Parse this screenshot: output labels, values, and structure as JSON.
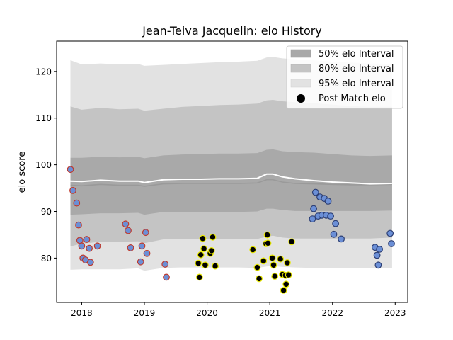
{
  "chart_data": {
    "type": "scatter",
    "title": "Jean-Teiva Jacquelin: elo History",
    "xlabel": "",
    "ylabel": "elo score",
    "xlim": [
      2017.6,
      2023.2
    ],
    "ylim": [
      70.5,
      126.5
    ],
    "xticks": [
      2018,
      2019,
      2020,
      2021,
      2022,
      2023
    ],
    "yticks": [
      80,
      90,
      100,
      110,
      120
    ],
    "legend": {
      "placement": "top-right",
      "entries": [
        "50% elo Interval",
        "80% elo Interval",
        "95% elo Interval",
        "Post Match elo"
      ]
    },
    "colors": {
      "band_50": "#a9a9a9",
      "band_80": "#c4c4c4",
      "band_95": "#e2e2e2",
      "median_line": "#9a9a9a",
      "mean_line": "#ffffff",
      "point_edge_2018": "#c0392b",
      "point_fill_2018": "#6b8fd6",
      "point_edge_2020": "#e8e800",
      "point_fill_2020": "#000000",
      "point_edge_2022": "#2c3e73",
      "point_fill_2022": "#6b8fd6"
    },
    "intervals": {
      "x": [
        2017.82,
        2018.0,
        2018.3,
        2018.6,
        2018.9,
        2019.0,
        2019.3,
        2019.6,
        2019.9,
        2020.2,
        2020.5,
        2020.8,
        2020.95,
        2021.05,
        2021.2,
        2021.4,
        2021.7,
        2022.0,
        2022.3,
        2022.6,
        2022.95
      ],
      "p95_low": [
        77.5,
        77.6,
        77.6,
        77.6,
        77.8,
        77.3,
        77.9,
        78.0,
        78.0,
        78.0,
        78.0,
        77.9,
        78.2,
        78.3,
        78.1,
        78.0,
        77.9,
        77.9,
        77.9,
        77.9,
        77.9
      ],
      "p80_low": [
        82.5,
        83.1,
        83.5,
        83.5,
        83.6,
        83.2,
        84.0,
        84.0,
        84.1,
        84.1,
        84.0,
        84.1,
        84.6,
        84.8,
        84.4,
        84.2,
        84.2,
        84.2,
        84.2,
        84.2,
        84.4
      ],
      "p50_low": [
        89.3,
        89.4,
        89.6,
        89.6,
        89.7,
        89.3,
        89.9,
        89.9,
        89.9,
        89.9,
        89.9,
        90.0,
        90.6,
        90.6,
        90.3,
        90.1,
        90.1,
        90.1,
        90.1,
        90.1,
        90.2
      ],
      "median": [
        95.6,
        95.5,
        95.8,
        95.6,
        95.6,
        95.4,
        95.9,
        96.0,
        96.0,
        96.0,
        96.0,
        96.1,
        96.8,
        96.8,
        96.3,
        96.0,
        95.9,
        95.8,
        95.7,
        95.7,
        95.8
      ],
      "mean": [
        96.5,
        96.4,
        96.7,
        96.5,
        96.5,
        96.2,
        96.8,
        96.9,
        96.9,
        97.0,
        97.0,
        97.1,
        98.0,
        98.0,
        97.4,
        97.0,
        96.6,
        96.3,
        96.1,
        95.9,
        96.0
      ],
      "p50_high": [
        101.5,
        101.5,
        101.7,
        101.6,
        101.7,
        101.4,
        102.0,
        102.2,
        102.3,
        102.4,
        102.4,
        102.5,
        103.2,
        103.3,
        102.9,
        102.7,
        102.6,
        102.3,
        102.0,
        101.9,
        102.0
      ],
      "p80_high": [
        112.5,
        111.8,
        112.2,
        111.9,
        112.0,
        111.6,
        112.0,
        112.4,
        112.6,
        112.8,
        112.9,
        113.1,
        113.8,
        113.9,
        113.6,
        113.4,
        113.2,
        112.9,
        112.6,
        112.4,
        112.4
      ],
      "p95_high": [
        122.4,
        121.5,
        121.7,
        121.5,
        121.6,
        121.2,
        121.4,
        121.6,
        121.8,
        122.0,
        122.1,
        122.3,
        123.0,
        123.1,
        122.8,
        122.6,
        122.4,
        122.1,
        121.9,
        121.7,
        121.6
      ]
    },
    "series": [
      {
        "group": "2018",
        "x": [
          2017.82,
          2017.86,
          2017.92,
          2017.95,
          2017.97,
          2018.0,
          2018.02,
          2018.06,
          2018.08,
          2018.12,
          2018.14,
          2018.25,
          2018.7,
          2018.74,
          2018.78,
          2018.94,
          2018.96,
          2019.02,
          2019.04,
          2019.33,
          2019.35
        ],
        "y": [
          99.0,
          94.5,
          91.8,
          87.1,
          83.8,
          82.6,
          80.0,
          79.6,
          84.0,
          82.1,
          79.1,
          82.6,
          87.3,
          85.9,
          82.2,
          79.2,
          82.6,
          85.5,
          81.0,
          78.7,
          75.9
        ]
      },
      {
        "group": "2020",
        "x": [
          2019.86,
          2019.88,
          2019.9,
          2019.93,
          2019.95,
          2019.97,
          2020.05,
          2020.07,
          2020.09,
          2020.13,
          2020.73,
          2020.8,
          2020.83,
          2020.9,
          2020.94,
          2020.96,
          2020.97,
          2021.04,
          2021.06,
          2021.08,
          2021.17,
          2021.2,
          2021.22,
          2021.25,
          2021.26,
          2021.28,
          2021.3,
          2021.35
        ],
        "y": [
          78.9,
          75.9,
          80.7,
          84.2,
          82.0,
          78.5,
          81.0,
          81.6,
          84.5,
          78.3,
          81.8,
          78.0,
          75.6,
          79.4,
          83.1,
          85.0,
          83.2,
          80.0,
          78.5,
          76.1,
          79.8,
          76.5,
          73.1,
          76.3,
          74.4,
          79.0,
          76.4,
          83.5
        ]
      },
      {
        "group": "2022",
        "x": [
          2021.68,
          2021.7,
          2021.73,
          2021.77,
          2021.8,
          2021.83,
          2021.87,
          2021.9,
          2021.93,
          2021.97,
          2022.02,
          2022.05,
          2022.14,
          2022.68,
          2022.71,
          2022.73,
          2022.75,
          2022.92,
          2022.94
        ],
        "y": [
          88.4,
          90.6,
          94.1,
          89.0,
          93.1,
          89.2,
          92.8,
          89.2,
          92.2,
          89.0,
          85.1,
          87.4,
          84.1,
          82.3,
          80.6,
          78.5,
          81.9,
          85.3,
          83.1
        ]
      }
    ]
  }
}
